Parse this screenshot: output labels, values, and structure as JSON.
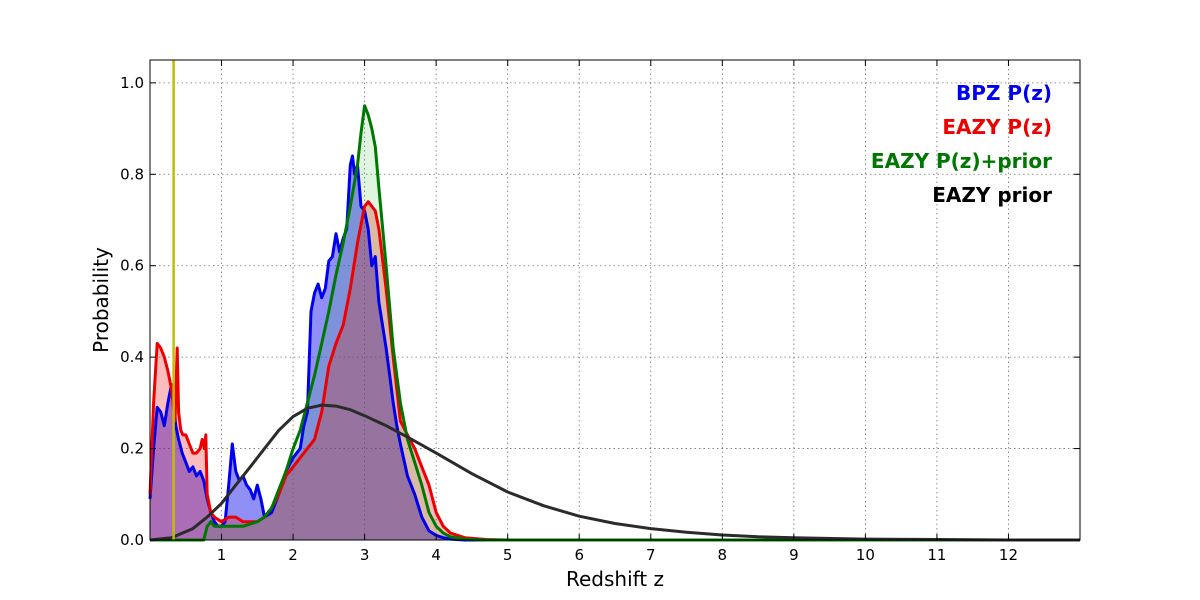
{
  "chart_data": {
    "type": "area",
    "xlabel": "Redshift z",
    "ylabel": "Probability",
    "xlim": [
      0,
      13
    ],
    "ylim": [
      0,
      1.05
    ],
    "xticks": [
      1,
      2,
      3,
      4,
      5,
      6,
      7,
      8,
      9,
      10,
      11,
      12
    ],
    "yticks": [
      0.0,
      0.2,
      0.4,
      0.6,
      0.8,
      1.0
    ],
    "ytick_labels": [
      "0.0",
      "0.2",
      "0.4",
      "0.6",
      "0.8",
      "1.0"
    ],
    "grid": true,
    "legend_position": "top-right",
    "vline": {
      "x": 0.33,
      "color": "#bfbf00"
    },
    "series": [
      {
        "name": "BPZ P(z)",
        "color": "#0000ee",
        "fill_color": "#3333ee",
        "fill_opacity": 0.55,
        "x": [
          0.0,
          0.05,
          0.1,
          0.15,
          0.2,
          0.25,
          0.3,
          0.33,
          0.36,
          0.4,
          0.45,
          0.5,
          0.55,
          0.6,
          0.65,
          0.7,
          0.75,
          0.8,
          0.85,
          0.9,
          0.95,
          1.0,
          1.05,
          1.1,
          1.15,
          1.2,
          1.25,
          1.3,
          1.35,
          1.4,
          1.45,
          1.5,
          1.55,
          1.6,
          1.7,
          1.8,
          1.9,
          2.0,
          2.1,
          2.15,
          2.2,
          2.25,
          2.3,
          2.35,
          2.4,
          2.45,
          2.5,
          2.55,
          2.6,
          2.65,
          2.7,
          2.75,
          2.8,
          2.83,
          2.86,
          2.9,
          2.95,
          3.0,
          3.05,
          3.1,
          3.15,
          3.2,
          3.25,
          3.3,
          3.35,
          3.4,
          3.45,
          3.5,
          3.6,
          3.7,
          3.8,
          3.9,
          4.0,
          4.1,
          4.2,
          4.4,
          5.0,
          13.0
        ],
        "y": [
          0.09,
          0.2,
          0.29,
          0.28,
          0.25,
          0.3,
          0.34,
          0.3,
          0.25,
          0.22,
          0.19,
          0.17,
          0.15,
          0.16,
          0.14,
          0.15,
          0.13,
          0.09,
          0.06,
          0.04,
          0.03,
          0.03,
          0.04,
          0.12,
          0.21,
          0.15,
          0.13,
          0.14,
          0.12,
          0.11,
          0.09,
          0.12,
          0.09,
          0.05,
          0.06,
          0.1,
          0.15,
          0.18,
          0.2,
          0.25,
          0.28,
          0.5,
          0.54,
          0.56,
          0.53,
          0.55,
          0.61,
          0.62,
          0.67,
          0.63,
          0.66,
          0.68,
          0.82,
          0.84,
          0.8,
          0.82,
          0.73,
          0.72,
          0.68,
          0.6,
          0.62,
          0.52,
          0.47,
          0.42,
          0.36,
          0.3,
          0.25,
          0.21,
          0.14,
          0.1,
          0.05,
          0.02,
          0.01,
          0.005,
          0.002,
          0.0,
          0.0,
          0.0
        ]
      },
      {
        "name": "EAZY P(z)",
        "color": "#ee0000",
        "fill_color": "#ee2222",
        "fill_opacity": 0.3,
        "x": [
          0.0,
          0.05,
          0.1,
          0.15,
          0.2,
          0.25,
          0.3,
          0.35,
          0.38,
          0.4,
          0.43,
          0.46,
          0.5,
          0.55,
          0.6,
          0.65,
          0.7,
          0.73,
          0.76,
          0.78,
          0.8,
          0.85,
          0.9,
          1.0,
          1.1,
          1.2,
          1.3,
          1.4,
          1.5,
          1.6,
          1.7,
          1.8,
          1.9,
          2.0,
          2.1,
          2.2,
          2.3,
          2.4,
          2.5,
          2.6,
          2.7,
          2.8,
          2.9,
          3.0,
          3.05,
          3.1,
          3.15,
          3.2,
          3.3,
          3.4,
          3.5,
          3.6,
          3.7,
          3.8,
          3.9,
          4.0,
          4.1,
          4.2,
          4.4,
          4.7,
          5.0,
          13.0
        ],
        "y": [
          0.1,
          0.3,
          0.43,
          0.42,
          0.4,
          0.37,
          0.33,
          0.26,
          0.42,
          0.28,
          0.24,
          0.23,
          0.23,
          0.21,
          0.19,
          0.19,
          0.2,
          0.22,
          0.2,
          0.23,
          0.1,
          0.06,
          0.05,
          0.04,
          0.05,
          0.05,
          0.04,
          0.04,
          0.04,
          0.05,
          0.07,
          0.1,
          0.14,
          0.16,
          0.18,
          0.2,
          0.22,
          0.28,
          0.38,
          0.43,
          0.47,
          0.55,
          0.65,
          0.73,
          0.74,
          0.73,
          0.72,
          0.68,
          0.55,
          0.4,
          0.26,
          0.23,
          0.2,
          0.16,
          0.12,
          0.06,
          0.03,
          0.015,
          0.005,
          0.001,
          0.0,
          0.0
        ]
      },
      {
        "name": "EAZY P(z)+prior",
        "color": "#007700",
        "fill_color": "#00aa00",
        "fill_opacity": 0.12,
        "x": [
          0.0,
          0.05,
          0.1,
          0.15,
          0.2,
          0.25,
          0.3,
          0.35,
          0.4,
          0.45,
          0.5,
          0.55,
          0.6,
          0.65,
          0.7,
          0.75,
          0.8,
          0.85,
          0.9,
          1.0,
          1.1,
          1.2,
          1.3,
          1.4,
          1.5,
          1.6,
          1.7,
          1.8,
          1.9,
          2.0,
          2.1,
          2.2,
          2.3,
          2.4,
          2.5,
          2.6,
          2.7,
          2.8,
          2.9,
          2.95,
          3.0,
          3.05,
          3.1,
          3.15,
          3.2,
          3.3,
          3.4,
          3.5,
          3.6,
          3.7,
          3.8,
          3.9,
          4.0,
          4.1,
          4.2,
          4.4,
          4.7,
          5.0,
          13.0
        ],
        "y": [
          0.0,
          0.0,
          0.0,
          0.0,
          0.0,
          0.0,
          0.0,
          0.0,
          0.0,
          0.0,
          0.0,
          0.0,
          0.0,
          0.0,
          0.0,
          0.0,
          0.03,
          0.04,
          0.03,
          0.03,
          0.03,
          0.03,
          0.03,
          0.035,
          0.04,
          0.05,
          0.07,
          0.11,
          0.15,
          0.2,
          0.24,
          0.3,
          0.36,
          0.43,
          0.5,
          0.58,
          0.65,
          0.73,
          0.82,
          0.89,
          0.95,
          0.93,
          0.9,
          0.86,
          0.77,
          0.6,
          0.42,
          0.3,
          0.22,
          0.17,
          0.12,
          0.06,
          0.03,
          0.015,
          0.007,
          0.002,
          0.0,
          0.0,
          0.0
        ]
      },
      {
        "name": "EAZY prior",
        "color": "#2b2b2b",
        "fill_color": "none",
        "fill_opacity": 0,
        "x": [
          0.0,
          0.3,
          0.6,
          0.8,
          1.0,
          1.2,
          1.4,
          1.6,
          1.8,
          2.0,
          2.2,
          2.4,
          2.6,
          2.8,
          3.0,
          3.3,
          3.6,
          4.0,
          4.5,
          5.0,
          5.5,
          6.0,
          6.5,
          7.0,
          7.5,
          8.0,
          8.5,
          9.0,
          10.0,
          11.0,
          12.0,
          13.0
        ],
        "y": [
          0.0,
          0.005,
          0.025,
          0.05,
          0.08,
          0.12,
          0.16,
          0.2,
          0.24,
          0.27,
          0.288,
          0.295,
          0.293,
          0.285,
          0.272,
          0.25,
          0.225,
          0.19,
          0.145,
          0.105,
          0.075,
          0.052,
          0.036,
          0.025,
          0.017,
          0.011,
          0.007,
          0.005,
          0.002,
          0.001,
          0.0,
          0.0
        ]
      }
    ]
  }
}
